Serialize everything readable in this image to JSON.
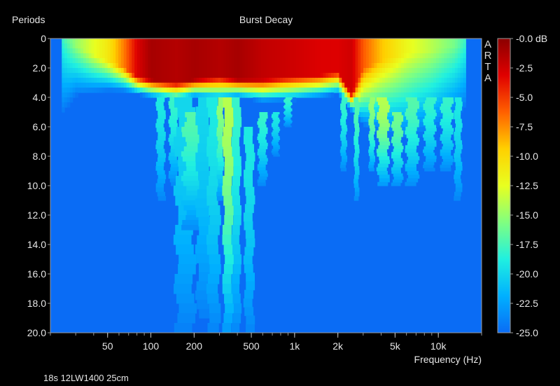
{
  "chart_data": {
    "type": "heatmap",
    "title": "Burst Decay",
    "ylabel": "Periods",
    "xlabel": "Frequency (Hz)",
    "caption": "18s 12LW1400 25cm",
    "brand_letters": [
      "A",
      "R",
      "T",
      "A"
    ],
    "x_scale": "log",
    "x_range": [
      20,
      20000
    ],
    "x_ticks": [
      {
        "value": 50,
        "label": "50"
      },
      {
        "value": 100,
        "label": "100"
      },
      {
        "value": 200,
        "label": "200"
      },
      {
        "value": 500,
        "label": "500"
      },
      {
        "value": 1000,
        "label": "1k"
      },
      {
        "value": 2000,
        "label": "2k"
      },
      {
        "value": 5000,
        "label": "5k"
      },
      {
        "value": 10000,
        "label": "10k"
      }
    ],
    "y_range": [
      0,
      20
    ],
    "y_ticks": [
      {
        "value": 0,
        "label": "0"
      },
      {
        "value": 2,
        "label": "2.0"
      },
      {
        "value": 4,
        "label": "4.0"
      },
      {
        "value": 6,
        "label": "6.0"
      },
      {
        "value": 8,
        "label": "8.0"
      },
      {
        "value": 10,
        "label": "10.0"
      },
      {
        "value": 12,
        "label": "12.0"
      },
      {
        "value": 14,
        "label": "14.0"
      },
      {
        "value": 16,
        "label": "16.0"
      },
      {
        "value": 18,
        "label": "18.0"
      },
      {
        "value": 20,
        "label": "20.0"
      }
    ],
    "colorbar": {
      "range": [
        -25,
        0
      ],
      "ticks": [
        {
          "value": 0,
          "label": "-0.0 dB"
        },
        {
          "value": -2.5,
          "label": "-2.5"
        },
        {
          "value": -5,
          "label": "-5.0"
        },
        {
          "value": -7.5,
          "label": "-7.5"
        },
        {
          "value": -10,
          "label": "-10.0"
        },
        {
          "value": -12.5,
          "label": "-12.5"
        },
        {
          "value": -15,
          "label": "-15.0"
        },
        {
          "value": -17.5,
          "label": "-17.5"
        },
        {
          "value": -20,
          "label": "-20.0"
        },
        {
          "value": -22.5,
          "label": "-22.5"
        },
        {
          "value": -25,
          "label": "-25.0"
        }
      ],
      "colors": [
        "#8b0000",
        "#e00000",
        "#ff6000",
        "#ffd000",
        "#e8ff20",
        "#80ff80",
        "#20f0e0",
        "#00b0ff",
        "#0a6cf5"
      ]
    },
    "background_level": -25,
    "data_extent": {
      "freq_min": 24,
      "freq_max": 15500
    },
    "decay_profile": [
      {
        "freq": 24,
        "hot_end": 0.0,
        "level": -18,
        "fade_to": 5.5
      },
      {
        "freq": 30,
        "hot_end": 0.5,
        "level": -15,
        "fade_to": 4.0
      },
      {
        "freq": 38,
        "hot_end": 1.0,
        "level": -13,
        "fade_to": 3.8
      },
      {
        "freq": 50,
        "hot_end": 1.5,
        "level": -11,
        "fade_to": 3.6
      },
      {
        "freq": 65,
        "hot_end": 2.0,
        "level": -7,
        "fade_to": 3.6
      },
      {
        "freq": 80,
        "hot_end": 2.6,
        "level": -3,
        "fade_to": 3.8
      },
      {
        "freq": 100,
        "hot_end": 2.8,
        "level": -1,
        "fade_to": 4.0
      },
      {
        "freq": 150,
        "hot_end": 3.0,
        "level": -1.5,
        "fade_to": 4.3
      },
      {
        "freq": 200,
        "hot_end": 2.8,
        "level": -1,
        "fade_to": 4.0
      },
      {
        "freq": 300,
        "hot_end": 2.6,
        "level": -1.5,
        "fade_to": 4.2
      },
      {
        "freq": 400,
        "hot_end": 2.8,
        "level": -1,
        "fade_to": 4.0
      },
      {
        "freq": 600,
        "hot_end": 2.8,
        "level": -2,
        "fade_to": 4.3
      },
      {
        "freq": 1000,
        "hot_end": 2.6,
        "level": -2.5,
        "fade_to": 4.2
      },
      {
        "freq": 1500,
        "hot_end": 2.5,
        "level": -3,
        "fade_to": 4.0
      },
      {
        "freq": 2000,
        "hot_end": 2.3,
        "level": -3,
        "fade_to": 3.8
      },
      {
        "freq": 2500,
        "hot_end": 3.8,
        "level": -2.5,
        "fade_to": 5.0
      },
      {
        "freq": 3000,
        "hot_end": 2.0,
        "level": -6,
        "fade_to": 6.0
      },
      {
        "freq": 4000,
        "hot_end": 1.5,
        "level": -9,
        "fade_to": 6.5
      },
      {
        "freq": 6000,
        "hot_end": 1.0,
        "level": -12,
        "fade_to": 7.0
      },
      {
        "freq": 9000,
        "hot_end": 0.8,
        "level": -14,
        "fade_to": 6.5
      },
      {
        "freq": 13000,
        "hot_end": 0.5,
        "level": -16,
        "fade_to": 5.5
      },
      {
        "freq": 15500,
        "hot_end": 0.3,
        "level": -18,
        "fade_to": 5.0
      }
    ],
    "ridges": [
      {
        "freq_start": 110,
        "freq_end": 125,
        "y_start": 4,
        "y_end": 11,
        "level": -19
      },
      {
        "freq_start": 135,
        "freq_end": 155,
        "y_start": 4,
        "y_end": 10,
        "level": -18
      },
      {
        "freq_start": 150,
        "freq_end": 200,
        "y_start": 4,
        "y_end": 20,
        "level": -20
      },
      {
        "freq_start": 170,
        "freq_end": 230,
        "y_start": 5,
        "y_end": 13,
        "level": -17
      },
      {
        "freq_start": 210,
        "freq_end": 260,
        "y_start": 4,
        "y_end": 19,
        "level": -20
      },
      {
        "freq_start": 250,
        "freq_end": 300,
        "y_start": 4,
        "y_end": 20,
        "level": -19
      },
      {
        "freq_start": 290,
        "freq_end": 320,
        "y_start": 4,
        "y_end": 11,
        "level": -15
      },
      {
        "freq_start": 320,
        "freq_end": 370,
        "y_start": 4,
        "y_end": 20,
        "level": -14
      },
      {
        "freq_start": 370,
        "freq_end": 420,
        "y_start": 4,
        "y_end": 20,
        "level": -18
      },
      {
        "freq_start": 450,
        "freq_end": 520,
        "y_start": 6,
        "y_end": 20,
        "level": -19
      },
      {
        "freq_start": 560,
        "freq_end": 640,
        "y_start": 5,
        "y_end": 10,
        "level": -18
      },
      {
        "freq_start": 700,
        "freq_end": 780,
        "y_start": 5,
        "y_end": 8,
        "level": -19
      },
      {
        "freq_start": 850,
        "freq_end": 950,
        "y_start": 4,
        "y_end": 6,
        "level": -18
      },
      {
        "freq_start": 2100,
        "freq_end": 2300,
        "y_start": 4,
        "y_end": 9,
        "level": -18
      },
      {
        "freq_start": 2600,
        "freq_end": 2800,
        "y_start": 4,
        "y_end": 11,
        "level": -17
      },
      {
        "freq_start": 3300,
        "freq_end": 3600,
        "y_start": 4,
        "y_end": 9,
        "level": -15
      },
      {
        "freq_start": 3800,
        "freq_end": 4500,
        "y_start": 4,
        "y_end": 10,
        "level": -14
      },
      {
        "freq_start": 4800,
        "freq_end": 5600,
        "y_start": 5,
        "y_end": 10,
        "level": -16
      },
      {
        "freq_start": 6000,
        "freq_end": 7200,
        "y_start": 4,
        "y_end": 10,
        "level": -17
      },
      {
        "freq_start": 8000,
        "freq_end": 9500,
        "y_start": 4,
        "y_end": 9,
        "level": -18
      },
      {
        "freq_start": 10500,
        "freq_end": 12500,
        "y_start": 4,
        "y_end": 9,
        "level": -18
      },
      {
        "freq_start": 13000,
        "freq_end": 14500,
        "y_start": 4,
        "y_end": 11,
        "level": -19
      }
    ]
  }
}
